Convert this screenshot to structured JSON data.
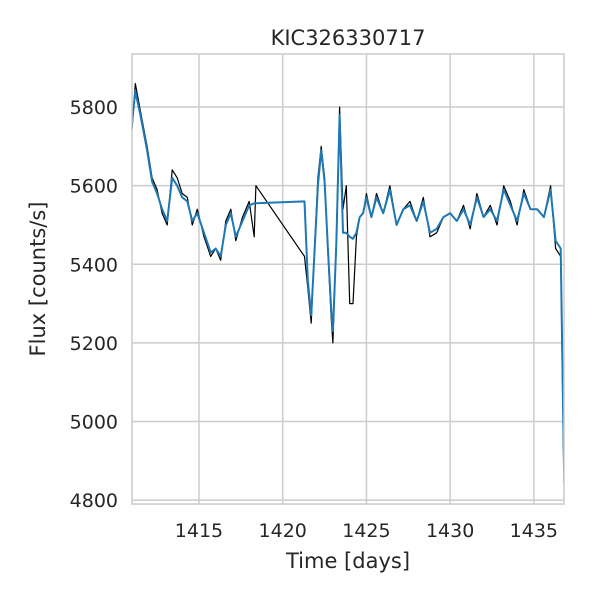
{
  "chart_data": {
    "type": "line",
    "title": "KIC326330717",
    "xlabel": "Time [days]",
    "ylabel": "Flux [counts/s]",
    "xlim": [
      1411.0,
      1436.8
    ],
    "ylim": [
      4790,
      5935
    ],
    "xticks": [
      1415,
      1420,
      1425,
      1430,
      1435
    ],
    "yticks": [
      4800,
      5000,
      5200,
      5400,
      5600,
      5800
    ],
    "grid": true,
    "legend": "none",
    "colors": {
      "raw": "#000000",
      "model": "#1f77b4",
      "grid": "#cccccc",
      "frame": "#cccccc"
    },
    "series": [
      {
        "style": "black",
        "x": [
          1411.0,
          1411.2,
          1411.5,
          1411.9,
          1412.2,
          1412.5,
          1412.8,
          1413.1,
          1413.4,
          1413.7,
          1414.0,
          1414.3,
          1414.6,
          1414.9,
          1415.3,
          1415.7,
          1416.0,
          1416.3,
          1416.6,
          1416.9,
          1417.2,
          1417.6,
          1418.0,
          1418.3,
          1418.4,
          1421.3,
          1421.5,
          1421.7,
          1421.9,
          1422.1,
          1422.3,
          1422.5,
          1422.7,
          1422.9,
          1423.0,
          1423.2,
          1423.4,
          1423.6,
          1423.8,
          1424.0,
          1424.2,
          1424.4,
          1424.6,
          1424.8,
          1425.0,
          1425.3,
          1425.6,
          1426.0,
          1426.4,
          1426.8,
          1427.2,
          1427.6,
          1428.0,
          1428.4,
          1428.8,
          1429.2,
          1429.6,
          1430.0,
          1430.4,
          1430.8,
          1431.2,
          1431.6,
          1432.0,
          1432.4,
          1432.8,
          1433.2,
          1433.6,
          1434.0,
          1434.4,
          1434.8,
          1435.2,
          1435.6,
          1436.0,
          1436.3,
          1436.6,
          1436.8
        ],
        "y": [
          5740,
          5860,
          5790,
          5700,
          5620,
          5590,
          5530,
          5500,
          5640,
          5620,
          5580,
          5570,
          5500,
          5540,
          5470,
          5420,
          5440,
          5410,
          5510,
          5540,
          5460,
          5520,
          5560,
          5470,
          5600,
          5420,
          5340,
          5250,
          5440,
          5620,
          5700,
          5620,
          5430,
          5260,
          5200,
          5460,
          5800,
          5540,
          5600,
          5300,
          5300,
          5470,
          5520,
          5530,
          5580,
          5520,
          5580,
          5530,
          5600,
          5500,
          5540,
          5560,
          5510,
          5570,
          5470,
          5480,
          5520,
          5530,
          5510,
          5550,
          5490,
          5580,
          5520,
          5550,
          5500,
          5600,
          5560,
          5500,
          5590,
          5540,
          5540,
          5520,
          5600,
          5440,
          5420,
          4840
        ]
      },
      {
        "style": "blue",
        "x": [
          1411.0,
          1411.2,
          1411.5,
          1411.9,
          1412.2,
          1412.5,
          1412.8,
          1413.1,
          1413.4,
          1413.7,
          1414.0,
          1414.3,
          1414.6,
          1414.9,
          1415.3,
          1415.7,
          1416.0,
          1416.3,
          1416.6,
          1416.9,
          1417.2,
          1417.6,
          1418.0,
          1418.3,
          1418.4,
          1421.3,
          1421.5,
          1421.7,
          1421.9,
          1422.1,
          1422.3,
          1422.5,
          1422.7,
          1422.9,
          1423.0,
          1423.2,
          1423.4,
          1423.6,
          1423.8,
          1424.0,
          1424.2,
          1424.4,
          1424.6,
          1424.8,
          1425.0,
          1425.3,
          1425.6,
          1426.0,
          1426.4,
          1426.8,
          1427.2,
          1427.6,
          1428.0,
          1428.4,
          1428.8,
          1429.2,
          1429.6,
          1430.0,
          1430.4,
          1430.8,
          1431.2,
          1431.6,
          1432.0,
          1432.4,
          1432.8,
          1433.2,
          1433.6,
          1434.0,
          1434.4,
          1434.8,
          1435.2,
          1435.6,
          1436.0,
          1436.3,
          1436.6,
          1436.8
        ],
        "y": [
          5760,
          5840,
          5780,
          5690,
          5610,
          5580,
          5540,
          5510,
          5620,
          5600,
          5570,
          5560,
          5510,
          5530,
          5480,
          5430,
          5440,
          5420,
          5500,
          5530,
          5470,
          5510,
          5550,
          5555,
          5555,
          5560,
          5360,
          5270,
          5430,
          5600,
          5690,
          5610,
          5440,
          5280,
          5230,
          5450,
          5780,
          5480,
          5480,
          5470,
          5465,
          5480,
          5520,
          5530,
          5570,
          5520,
          5570,
          5530,
          5590,
          5500,
          5540,
          5550,
          5510,
          5560,
          5480,
          5490,
          5520,
          5530,
          5510,
          5540,
          5500,
          5570,
          5520,
          5540,
          5510,
          5590,
          5550,
          5510,
          5580,
          5540,
          5540,
          5520,
          5590,
          5460,
          5440,
          4880
        ]
      }
    ]
  }
}
